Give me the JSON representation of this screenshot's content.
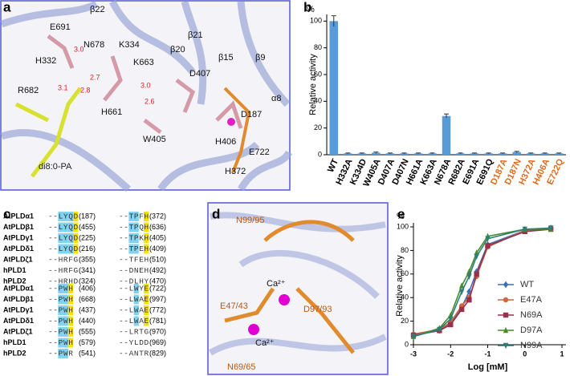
{
  "panel_labels": [
    "a",
    "b",
    "c",
    "d",
    "e"
  ],
  "panel_a": {
    "labels": [
      "β22",
      "β21",
      "β20",
      "β15",
      "β9",
      "α8",
      "E691",
      "N678",
      "K334",
      "K663",
      "H332",
      "R682",
      "D407",
      "D187",
      "H661",
      "H406",
      "E722",
      "W405",
      "H372",
      "di8:0-PA"
    ],
    "distances": [
      "3.0",
      "2.7",
      "3.1",
      "2.8",
      "3.0",
      "2.6"
    ]
  },
  "panel_c": {
    "blocks": [
      {
        "rows": [
          {
            "name": "AtPLDα1",
            "seq1": "--LYQD",
            "num1": "(187)",
            "seq2": "--TPFH",
            "num2": "(372)"
          },
          {
            "name": "AtPLDβ1",
            "seq1": "--LYQD",
            "num1": "(455)",
            "seq2": "--TPQH",
            "num2": "(636)"
          },
          {
            "name": "AtPLDγ1",
            "seq1": "--LYQD",
            "num1": "(225)",
            "seq2": "--TPKH",
            "num2": "(405)"
          },
          {
            "name": "AtPLDδ1",
            "seq1": "--LYQD",
            "num1": "(216)",
            "seq2": "--TPEH",
            "num2": "(409)"
          },
          {
            "name": "AtPLDζ1",
            "seq1": "--HRFG",
            "num1": "(355)",
            "seq2": "--TFEH",
            "num2": "(510)"
          },
          {
            "name": "hPLD1",
            "seq1": "--HRFG",
            "num1": "(341)",
            "seq2": "--DNEH",
            "num2": "(492)"
          },
          {
            "name": "hPLD2",
            "seq1": "--HRHD",
            "num1": "(324)",
            "seq2": "--DLHY",
            "num2": "(470)"
          }
        ]
      },
      {
        "rows": [
          {
            "name": "AtPLDα1",
            "seq1": "--PWH",
            "num1": "(406)",
            "seq2": "--LWYE",
            "num2": "(722)"
          },
          {
            "name": "AtPLDβ1",
            "seq1": "--PWH",
            "num1": "(668)",
            "seq2": "--LWAE",
            "num2": "(997)"
          },
          {
            "name": "AtPLDγ1",
            "seq1": "--PWH",
            "num1": "(437)",
            "seq2": "--LWAE",
            "num2": "(772)"
          },
          {
            "name": "AtPLDδ1",
            "seq1": "--PWH",
            "num1": "(440)",
            "seq2": "--LWAE",
            "num2": "(781)"
          },
          {
            "name": "AtPLDζ1",
            "seq1": "--PWH",
            "num1": "(555)",
            "seq2": "--LRTG",
            "num2": "(970)"
          },
          {
            "name": "hPLD1",
            "seq1": "--PWH",
            "num1": "(579)",
            "seq2": "--YLDD",
            "num2": "(969)"
          },
          {
            "name": "hPLD2",
            "seq1": "--PWR",
            "num1": "(541)",
            "seq2": "--ANTR",
            "num2": "(829)"
          }
        ]
      }
    ]
  },
  "panel_d": {
    "labels": [
      "N99/95",
      "Ca²⁺",
      "E47/43",
      "D97/93",
      "Ca²⁺",
      "N69/65"
    ]
  },
  "chart_data": [
    {
      "type": "bar",
      "unit": "%",
      "y_label": "Relative activity",
      "categories": [
        "WT",
        "H332A",
        "K334D",
        "W405A",
        "D407A",
        "D407N",
        "H661A",
        "K663A",
        "N678A",
        "R682A",
        "E691A",
        "E691Q",
        "D187A",
        "D187N",
        "H372A",
        "H406A",
        "E722Q"
      ],
      "category_colors": [
        "#000000",
        "#000000",
        "#000000",
        "#000000",
        "#000000",
        "#000000",
        "#000000",
        "#000000",
        "#000000",
        "#000000",
        "#000000",
        "#000000",
        "#e06a1b",
        "#e06a1b",
        "#e06a1b",
        "#e06a1b",
        "#e06a1b"
      ],
      "values": [
        100,
        1,
        1,
        1.5,
        1,
        1,
        1,
        1,
        29,
        1,
        1,
        1,
        1,
        2,
        1,
        1,
        1
      ],
      "errors": [
        4,
        0.3,
        0.3,
        0.5,
        0.3,
        0.3,
        0.3,
        0.3,
        1.5,
        0.3,
        0.3,
        0.3,
        0.3,
        0.5,
        0.3,
        0.3,
        0.3
      ],
      "color": "#5b9bd5",
      "ylim": [
        0,
        105
      ],
      "yticks": [
        0,
        20,
        40,
        60,
        80,
        100
      ]
    },
    {
      "type": "line",
      "unit": "%",
      "y_label": "Relative activity",
      "x_label": "Log [mM]",
      "x": [
        -3,
        -2.3,
        -2,
        -1.7,
        -1.5,
        -1.3,
        -1,
        0,
        0.7
      ],
      "series": [
        {
          "name": "WT",
          "color": "#3d6fb6",
          "marker": "diamond",
          "values": [
            8,
            12,
            18,
            32,
            45,
            62,
            85,
            97,
            99
          ]
        },
        {
          "name": "E47A",
          "color": "#d0663a",
          "marker": "circle",
          "values": [
            9,
            13,
            19,
            33,
            40,
            58,
            83,
            97,
            98
          ]
        },
        {
          "name": "N69A",
          "color": "#9b2f4a",
          "marker": "square",
          "values": [
            8,
            12,
            17,
            30,
            38,
            60,
            84,
            96,
            98
          ]
        },
        {
          "name": "D97A",
          "color": "#4a8a2a",
          "marker": "triangle",
          "values": [
            7,
            14,
            25,
            50,
            62,
            78,
            92,
            98,
            98
          ]
        },
        {
          "name": "N99A",
          "color": "#2a7f7a",
          "marker": "triangle-down",
          "values": [
            7,
            13,
            22,
            45,
            58,
            75,
            90,
            98,
            99
          ]
        }
      ],
      "xlim": [
        -3,
        1
      ],
      "xticks": [
        -3,
        -2,
        -1,
        0,
        1
      ],
      "ylim": [
        0,
        100
      ],
      "yticks": [
        0,
        20,
        40,
        60,
        80,
        100
      ]
    }
  ]
}
